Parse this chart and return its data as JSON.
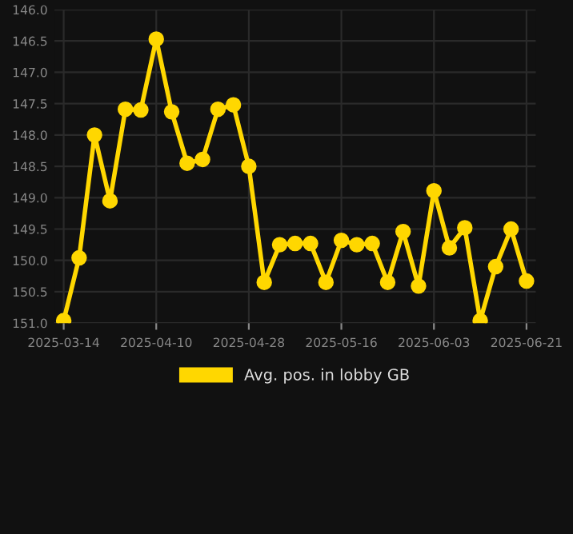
{
  "chart_data": {
    "type": "line",
    "categories": [
      "2025-03-14",
      null,
      null,
      null,
      null,
      null,
      "2025-04-10",
      null,
      null,
      null,
      null,
      null,
      "2025-04-28",
      null,
      null,
      null,
      null,
      null,
      "2025-05-16",
      null,
      null,
      null,
      null,
      null,
      "2025-06-03",
      null,
      null,
      null,
      null,
      null,
      "2025-06-21"
    ],
    "series": [
      {
        "name": "Avg. pos. in lobby GB",
        "color": "#ffd700",
        "values": [
          150.96,
          149.96,
          148.0,
          149.05,
          147.59,
          147.6,
          146.47,
          147.63,
          148.45,
          148.39,
          147.59,
          147.52,
          148.5,
          150.35,
          149.75,
          149.73,
          149.73,
          150.35,
          149.68,
          149.75,
          149.73,
          150.35,
          149.54,
          150.41,
          148.89,
          149.8,
          149.48,
          150.96,
          150.1,
          149.5,
          150.33
        ]
      }
    ],
    "ylim": [
      151.0,
      146.0
    ],
    "yticks": [
      {
        "value": 146.0,
        "label": "146.0"
      },
      {
        "value": 146.5,
        "label": "146.5"
      },
      {
        "value": 147.0,
        "label": "147.0"
      },
      {
        "value": 147.5,
        "label": "147.5"
      },
      {
        "value": 148.0,
        "label": "148.0"
      },
      {
        "value": 148.5,
        "label": "148.5"
      },
      {
        "value": 149.0,
        "label": "149.0"
      },
      {
        "value": 149.5,
        "label": "149.5"
      },
      {
        "value": 150.0,
        "label": "150.0"
      },
      {
        "value": 150.5,
        "label": "150.5"
      },
      {
        "value": 151.0,
        "label": "151.0"
      }
    ],
    "grid": true,
    "legend": "bottom",
    "marker": "circle",
    "line_style": "solid"
  }
}
